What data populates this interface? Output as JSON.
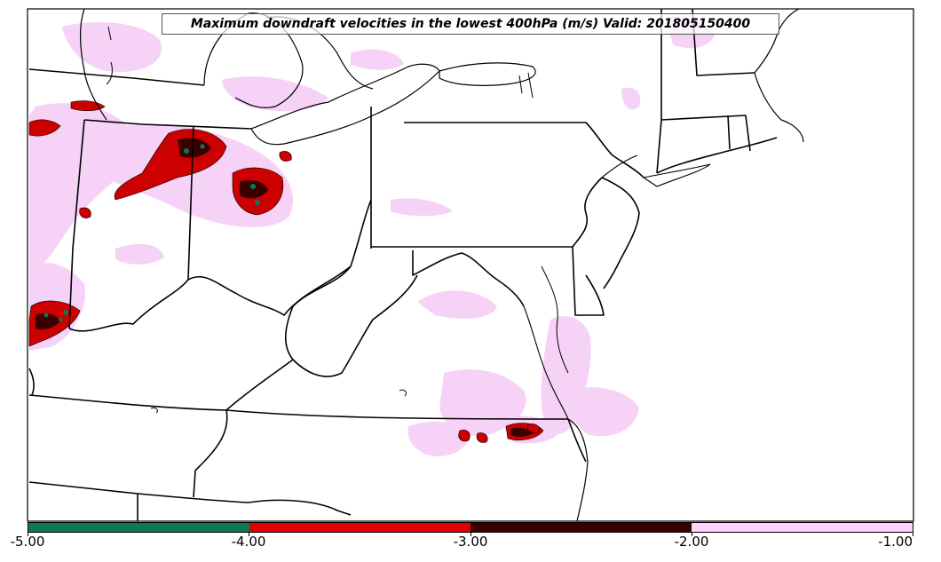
{
  "map": {
    "title": "Maximum downdraft velocities in the lowest 400hPa (m/s) Valid: 201805150400"
  },
  "colorbar": {
    "segments": [
      {
        "from": -5.0,
        "to": -4.0,
        "color": "#0a7a55"
      },
      {
        "from": -4.0,
        "to": -3.0,
        "color": "#e00000"
      },
      {
        "from": -3.0,
        "to": -2.0,
        "color": "#3a0000"
      },
      {
        "from": -2.0,
        "to": -1.0,
        "color": "#fad4fa"
      }
    ],
    "tick_labels": [
      "-5.00",
      "-4.00",
      "-3.00",
      "-2.00",
      "-1.00"
    ]
  },
  "colors": {
    "weak_downdraft": "#f7d2f7",
    "moderate_downdraft": "#cc0000",
    "strong_downdraft": "#3a0000",
    "extreme_downdraft": "#0a7a55",
    "borders": "#000000"
  }
}
